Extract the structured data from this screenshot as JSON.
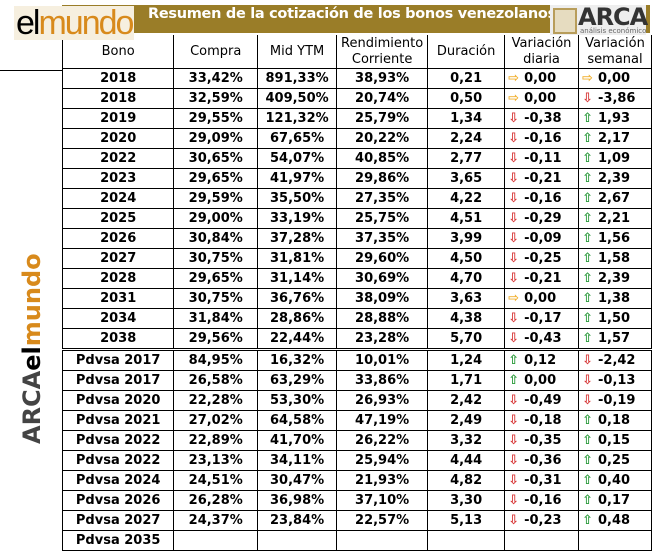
{
  "title": "Resumen de la cotización de los bonos venezolanos",
  "logos": {
    "left": "elmundo",
    "right": "ARCA",
    "right_sub": "análisis económico",
    "side": "ARCA elmundo"
  },
  "colors": {
    "banner": "#9a7d28",
    "up": "#2a9a3a",
    "down": "#d83a3a",
    "flat": "#f0b030"
  },
  "headers": [
    "Bono",
    "Compra",
    "Mid YTM",
    "Rendimiento Corriente",
    "Duración",
    "Variación diaria",
    "Variación semanal"
  ],
  "rows": [
    [
      "2018",
      "33,42%",
      "891,33%",
      "38,93%",
      "0,21",
      "right",
      "0,00",
      "right",
      "0,00"
    ],
    [
      "2018",
      "32,59%",
      "409,50%",
      "20,74%",
      "0,50",
      "right",
      "0,00",
      "down",
      "-3,86"
    ],
    [
      "2019",
      "29,55%",
      "121,32%",
      "25,79%",
      "1,34",
      "down",
      "-0,38",
      "up",
      "1,93"
    ],
    [
      "2020",
      "29,09%",
      "67,65%",
      "20,22%",
      "2,24",
      "down",
      "-0,16",
      "up",
      "2,17"
    ],
    [
      "2022",
      "30,65%",
      "54,07%",
      "40,85%",
      "2,77",
      "down",
      "-0,11",
      "up",
      "1,09"
    ],
    [
      "2023",
      "29,65%",
      "41,97%",
      "29,86%",
      "3,65",
      "down",
      "-0,21",
      "up",
      "2,39"
    ],
    [
      "2024",
      "29,59%",
      "35,50%",
      "27,35%",
      "4,22",
      "down",
      "-0,16",
      "up",
      "2,67"
    ],
    [
      "2025",
      "29,00%",
      "33,19%",
      "25,75%",
      "4,51",
      "down",
      "-0,29",
      "up",
      "2,21"
    ],
    [
      "2026",
      "30,84%",
      "37,28%",
      "37,35%",
      "3,99",
      "down",
      "-0,09",
      "up",
      "1,56"
    ],
    [
      "2027",
      "30,75%",
      "31,81%",
      "29,60%",
      "4,50",
      "down",
      "-0,25",
      "up",
      "1,58"
    ],
    [
      "2028",
      "29,65%",
      "31,14%",
      "30,69%",
      "4,70",
      "down",
      "-0,21",
      "up",
      "2,39"
    ],
    [
      "2031",
      "30,75%",
      "36,76%",
      "38,09%",
      "3,63",
      "right",
      "0,00",
      "up",
      "1,38"
    ],
    [
      "2034",
      "31,84%",
      "28,86%",
      "28,88%",
      "4,38",
      "down",
      "-0,17",
      "up",
      "1,50"
    ],
    [
      "2038",
      "29,56%",
      "22,44%",
      "23,28%",
      "5,70",
      "down",
      "-0,43",
      "up",
      "1,57"
    ],
    [
      "Pdvsa 2017",
      "84,95%",
      "16,32%",
      "10,01%",
      "1,24",
      "up",
      "0,12",
      "down",
      "-2,42"
    ],
    [
      "Pdvsa 2017",
      "26,58%",
      "63,29%",
      "33,86%",
      "1,71",
      "up",
      "0,00",
      "down",
      "-0,13"
    ],
    [
      "Pdvsa 2020",
      "22,28%",
      "53,30%",
      "26,93%",
      "2,42",
      "down",
      "-0,49",
      "down",
      "-0,19"
    ],
    [
      "Pdvsa 2021",
      "27,02%",
      "64,58%",
      "47,19%",
      "2,49",
      "down",
      "-0,18",
      "up",
      "0,18"
    ],
    [
      "Pdvsa 2022",
      "22,89%",
      "41,70%",
      "26,22%",
      "3,32",
      "down",
      "-0,35",
      "up",
      "0,15"
    ],
    [
      "Pdvsa 2022",
      "23,13%",
      "34,11%",
      "25,94%",
      "4,44",
      "down",
      "-0,36",
      "up",
      "0,25"
    ],
    [
      "Pdvsa 2024",
      "24,51%",
      "30,47%",
      "21,93%",
      "4,82",
      "down",
      "-0,31",
      "up",
      "0,40"
    ],
    [
      "Pdvsa 2026",
      "26,28%",
      "36,98%",
      "37,10%",
      "3,30",
      "down",
      "-0,16",
      "up",
      "0,17"
    ],
    [
      "Pdvsa 2027",
      "24,37%",
      "23,84%",
      "22,57%",
      "5,13",
      "down",
      "-0,23",
      "up",
      "0,48"
    ],
    [
      "Pdvsa 2035",
      "",
      "",
      "",
      "",
      "",
      "",
      "",
      ""
    ]
  ]
}
